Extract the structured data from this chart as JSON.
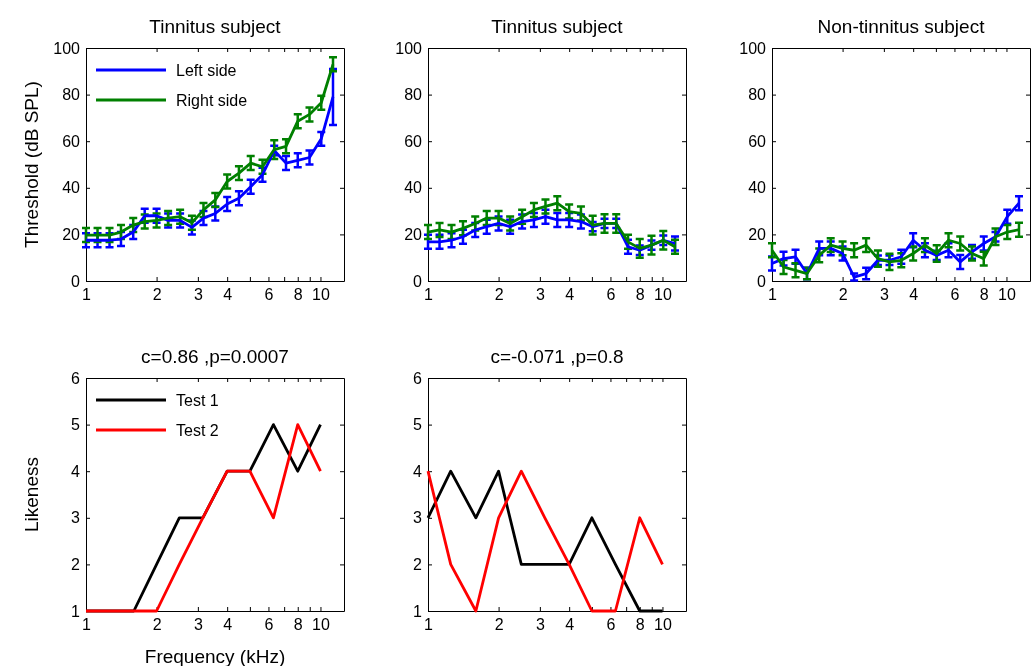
{
  "chart_data": [
    {
      "type": "line",
      "title": "Tinnitus subject",
      "ylabel": "Threshold (dB SPL)",
      "x": [
        1,
        1.12,
        1.26,
        1.41,
        1.59,
        1.78,
        2,
        2.24,
        2.52,
        2.83,
        3.17,
        3.56,
        4,
        4.49,
        5.04,
        5.66,
        6.35,
        7.13,
        8,
        8.98,
        10.08,
        11.31
      ],
      "xlim": [
        1,
        12.6
      ],
      "ylim": [
        0,
        100
      ],
      "yticks": [
        0,
        20,
        40,
        60,
        80,
        100
      ],
      "xticks": [
        1,
        2,
        3,
        4,
        {
          "value": 5,
          "label": null
        },
        6,
        {
          "value": 7,
          "label": null
        },
        8,
        {
          "value": 9,
          "label": null
        },
        10
      ],
      "log": "x",
      "grid": false,
      "legend": "top left",
      "marker": "none",
      "line_style": "solid",
      "series": [
        {
          "name": "Left side",
          "color": "#0000ff",
          "values": [
            17.5,
            17.5,
            17.5,
            18,
            21,
            28,
            28,
            26,
            26,
            23,
            27,
            29,
            33,
            35.5,
            40.5,
            45.6,
            56,
            50.6,
            51.8,
            53,
            61,
            79
          ],
          "errors": [
            3,
            3,
            3,
            3,
            3,
            3,
            3,
            3,
            3,
            3,
            3,
            3,
            3,
            3,
            3,
            3,
            2,
            3,
            3,
            3,
            3,
            12
          ]
        },
        {
          "name": "Right side",
          "color": "#008000",
          "values": [
            19.7,
            19.7,
            19.7,
            21,
            24,
            25.5,
            26,
            27,
            27.6,
            25,
            30.5,
            34.8,
            42.7,
            46.3,
            50.6,
            49,
            56.4,
            57.8,
            68.6,
            71.5,
            76.5,
            93
          ],
          "errors": [
            3,
            3,
            3,
            3,
            3,
            3,
            3,
            3,
            3,
            3,
            3,
            3,
            3,
            3,
            3,
            3,
            4,
            3,
            3,
            3,
            3,
            3
          ]
        }
      ]
    },
    {
      "type": "line",
      "title": "Tinnitus subject",
      "x": [
        1,
        1.12,
        1.26,
        1.41,
        1.59,
        1.78,
        2,
        2.24,
        2.52,
        2.83,
        3.17,
        3.56,
        4,
        4.49,
        5.04,
        5.66,
        6.35,
        7.13,
        8,
        8.98,
        10.08,
        11.31
      ],
      "xlim": [
        1,
        12.6
      ],
      "ylim": [
        0,
        100
      ],
      "yticks": [
        0,
        20,
        40,
        60,
        80,
        100
      ],
      "xticks": [
        1,
        2,
        3,
        4,
        {
          "value": 5,
          "label": null
        },
        6,
        {
          "value": 7,
          "label": null
        },
        8,
        {
          "value": 9,
          "label": null
        },
        10
      ],
      "log": "x",
      "grid": false,
      "marker": "none",
      "line_style": "solid",
      "series": [
        {
          "color": "#0000ff",
          "values": [
            16.8,
            16.8,
            17.5,
            19,
            21.9,
            23.3,
            24.7,
            23.3,
            25.5,
            26.2,
            27.6,
            26.2,
            26.2,
            25.5,
            23.3,
            24.7,
            24.7,
            14.7,
            13.2,
            15.4,
            17.5,
            16.1
          ],
          "errors": [
            3,
            3,
            3,
            3,
            3,
            3,
            3,
            3,
            3,
            3,
            3,
            3,
            3,
            3,
            2,
            2,
            2,
            3,
            2,
            2,
            2,
            3
          ]
        },
        {
          "color": "#008000",
          "values": [
            21,
            21.9,
            21,
            22.6,
            24.7,
            27,
            27,
            24.7,
            27.6,
            30.5,
            32,
            33.4,
            29.8,
            29,
            24,
            24.7,
            24.7,
            16.8,
            14,
            15.4,
            17.5,
            14.7
          ],
          "errors": [
            3,
            3,
            3,
            3,
            3,
            3,
            3,
            3,
            3,
            3,
            3,
            3,
            3,
            3,
            4,
            4,
            4,
            3,
            4,
            4,
            4,
            3
          ]
        }
      ]
    },
    {
      "type": "line",
      "title": "Non-tinnitus subject",
      "x": [
        1,
        1.12,
        1.26,
        1.41,
        1.59,
        1.78,
        2,
        2.24,
        2.52,
        2.83,
        3.17,
        3.56,
        4,
        4.49,
        5.04,
        5.66,
        6.35,
        7.13,
        8,
        8.98,
        10.08,
        11.31
      ],
      "xlim": [
        1,
        12.6
      ],
      "ylim": [
        0,
        100
      ],
      "yticks": [
        0,
        20,
        40,
        60,
        80,
        100
      ],
      "xticks": [
        1,
        2,
        3,
        4,
        {
          "value": 5,
          "label": null
        },
        6,
        {
          "value": 7,
          "label": null
        },
        8,
        {
          "value": 9,
          "label": null
        },
        10
      ],
      "log": "x",
      "grid": false,
      "marker": "none",
      "line_style": "solid",
      "series": [
        {
          "color": "#0000ff",
          "values": [
            7.5,
            9.6,
            10.4,
            3.2,
            14,
            14,
            11.8,
            1.7,
            3.2,
            8.9,
            8.9,
            10.4,
            17.5,
            13.2,
            11,
            13.2,
            8.2,
            12.5,
            16.1,
            19,
            27.6,
            33.4
          ],
          "errors": [
            3,
            3,
            3,
            2.5,
            3,
            3,
            3,
            1.5,
            2.5,
            2,
            2,
            3,
            3,
            3,
            2,
            3,
            3,
            3,
            3,
            2,
            3,
            3
          ]
        },
        {
          "color": "#008000",
          "values": [
            13.2,
            6,
            4.6,
            3.2,
            11,
            15.4,
            14,
            13.2,
            15.4,
            9.6,
            8.2,
            8.9,
            11.8,
            15.4,
            11.8,
            17.5,
            16.1,
            11.8,
            9.6,
            19,
            21,
            22
          ],
          "errors": [
            3,
            3,
            3,
            2.5,
            3,
            3,
            3,
            3,
            3,
            3.5,
            3.5,
            3,
            3,
            3,
            3.5,
            3,
            3,
            3,
            3,
            3.5,
            3,
            3
          ]
        }
      ]
    },
    {
      "type": "line",
      "title": "c=0.86 ,p=0.0007",
      "ylabel": "Likeness",
      "xlabel": "Frequency (kHz)",
      "x": [
        1,
        1.25,
        1.6,
        2,
        2.5,
        3.15,
        4,
        5,
        6.3,
        8,
        10
      ],
      "xlim": [
        1,
        12.6
      ],
      "ylim": [
        1,
        6
      ],
      "yticks": [
        1,
        2,
        3,
        4,
        5,
        6
      ],
      "xticks": [
        1,
        2,
        3,
        4,
        {
          "value": 5,
          "label": null
        },
        6,
        {
          "value": 7,
          "label": null
        },
        8,
        {
          "value": 9,
          "label": null
        },
        10
      ],
      "log": "x",
      "grid": false,
      "legend": "top left",
      "marker": "none",
      "line_style": "solid",
      "series": [
        {
          "name": "Test 1",
          "color": "#000000",
          "values": [
            1,
            1,
            1,
            2,
            3,
            3,
            4,
            4,
            5,
            4,
            5
          ]
        },
        {
          "name": "Test 2",
          "color": "#ff0000",
          "values": [
            1,
            1,
            1,
            1,
            2,
            3,
            4,
            4,
            3,
            5,
            4
          ]
        }
      ]
    },
    {
      "type": "line",
      "title": "c=-0.071 ,p=0.8",
      "x": [
        1,
        1.25,
        1.6,
        2,
        2.5,
        3.15,
        4,
        5,
        6.3,
        8,
        10
      ],
      "xlim": [
        1,
        12.6
      ],
      "ylim": [
        1,
        6
      ],
      "yticks": [
        1,
        2,
        3,
        4,
        5,
        6
      ],
      "xticks": [
        1,
        2,
        3,
        4,
        {
          "value": 5,
          "label": null
        },
        6,
        {
          "value": 7,
          "label": null
        },
        8,
        {
          "value": 9,
          "label": null
        },
        10
      ],
      "log": "x",
      "grid": false,
      "marker": "none",
      "line_style": "solid",
      "series": [
        {
          "color": "#000000",
          "values": [
            3,
            4,
            3,
            4,
            2,
            2,
            2,
            3,
            2,
            1,
            1
          ]
        },
        {
          "color": "#ff0000",
          "values": [
            4,
            2,
            1,
            3,
            4,
            3,
            2,
            1,
            1,
            3,
            2
          ]
        }
      ]
    }
  ]
}
